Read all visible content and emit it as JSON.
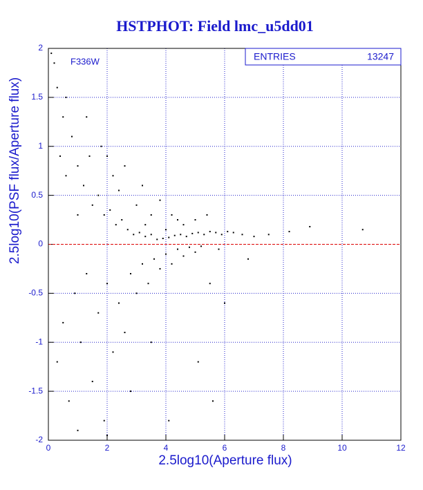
{
  "chart_data": {
    "type": "scatter",
    "title": "HSTPHOT: Field lmc_u5dd01",
    "x_label": "2.5log10(Aperture flux)",
    "y_label": "2.5log10(PSF flux/Aperture flux)",
    "annotation": "F336W",
    "stats": {
      "label": "ENTRIES",
      "value": 13247
    },
    "color": "#000000",
    "axis_color": "#1a1acc",
    "grid": true,
    "grid_color": "#2222cc",
    "reference_line": {
      "y": 0,
      "color": "#dd0000"
    },
    "xlim": [
      0,
      12
    ],
    "ylim": [
      -2,
      2
    ],
    "xticks": [
      0,
      2,
      4,
      6,
      8,
      10,
      12
    ],
    "yticks": [
      -2,
      -1.5,
      -1,
      -0.5,
      0,
      0.5,
      1,
      1.5,
      2
    ],
    "x": [
      0.2,
      0.3,
      0.5,
      0.4,
      0.6,
      0.8,
      1.0,
      1.2,
      1.4,
      1.5,
      1.7,
      1.9,
      2.1,
      2.3,
      2.5,
      2.7,
      2.9,
      3.1,
      3.3,
      3.5,
      3.7,
      3.9,
      4.1,
      4.3,
      4.5,
      4.7,
      4.9,
      5.1,
      5.3,
      5.5,
      5.7,
      5.9,
      6.1,
      6.3,
      6.6,
      7.0,
      7.5,
      8.2,
      8.9,
      10.7,
      0.3,
      0.5,
      0.7,
      0.9,
      1.1,
      1.3,
      1.5,
      1.7,
      1.9,
      2.0,
      2.2,
      2.4,
      2.6,
      2.8,
      3.0,
      3.2,
      3.4,
      3.6,
      3.8,
      4.0,
      4.2,
      4.4,
      4.6,
      4.8,
      5.0,
      5.2,
      5.5,
      5.8,
      6.0,
      6.8,
      5.1,
      5.6,
      4.1,
      2.8,
      3.5,
      1.0,
      2.0,
      1.0,
      1.3,
      2.0,
      2.4,
      2.6,
      3.0,
      3.2,
      3.5,
      3.8,
      4.2,
      4.6,
      5.0,
      5.4,
      0.1,
      0.6,
      1.8,
      2.2,
      3.3,
      4.0,
      4.4
    ],
    "values": [
      1.85,
      1.6,
      1.3,
      0.9,
      0.7,
      1.1,
      0.8,
      0.6,
      0.9,
      0.4,
      0.5,
      0.3,
      0.35,
      0.2,
      0.25,
      0.15,
      0.1,
      0.12,
      0.08,
      0.1,
      0.05,
      0.06,
      0.07,
      0.09,
      0.1,
      0.08,
      0.11,
      0.12,
      0.1,
      0.13,
      0.12,
      0.1,
      0.13,
      0.12,
      0.1,
      0.08,
      0.1,
      0.13,
      0.18,
      0.15,
      -1.2,
      -0.8,
      -1.6,
      -0.5,
      -1.0,
      -0.3,
      -1.4,
      -0.7,
      -1.8,
      -0.4,
      -1.1,
      -0.6,
      -0.9,
      -0.3,
      -0.5,
      -0.2,
      -0.4,
      -0.15,
      -0.25,
      -0.1,
      -0.2,
      -0.05,
      -0.12,
      -0.03,
      -0.08,
      -0.02,
      -0.4,
      -0.05,
      -0.6,
      -0.15,
      -1.2,
      -1.6,
      -1.8,
      -1.5,
      -1.0,
      -1.9,
      -1.95,
      0.3,
      1.3,
      0.9,
      0.55,
      0.8,
      0.4,
      0.6,
      0.3,
      0.45,
      0.3,
      0.2,
      0.25,
      0.3,
      1.95,
      1.5,
      1.0,
      0.7,
      0.2,
      0.15,
      0.25
    ]
  }
}
